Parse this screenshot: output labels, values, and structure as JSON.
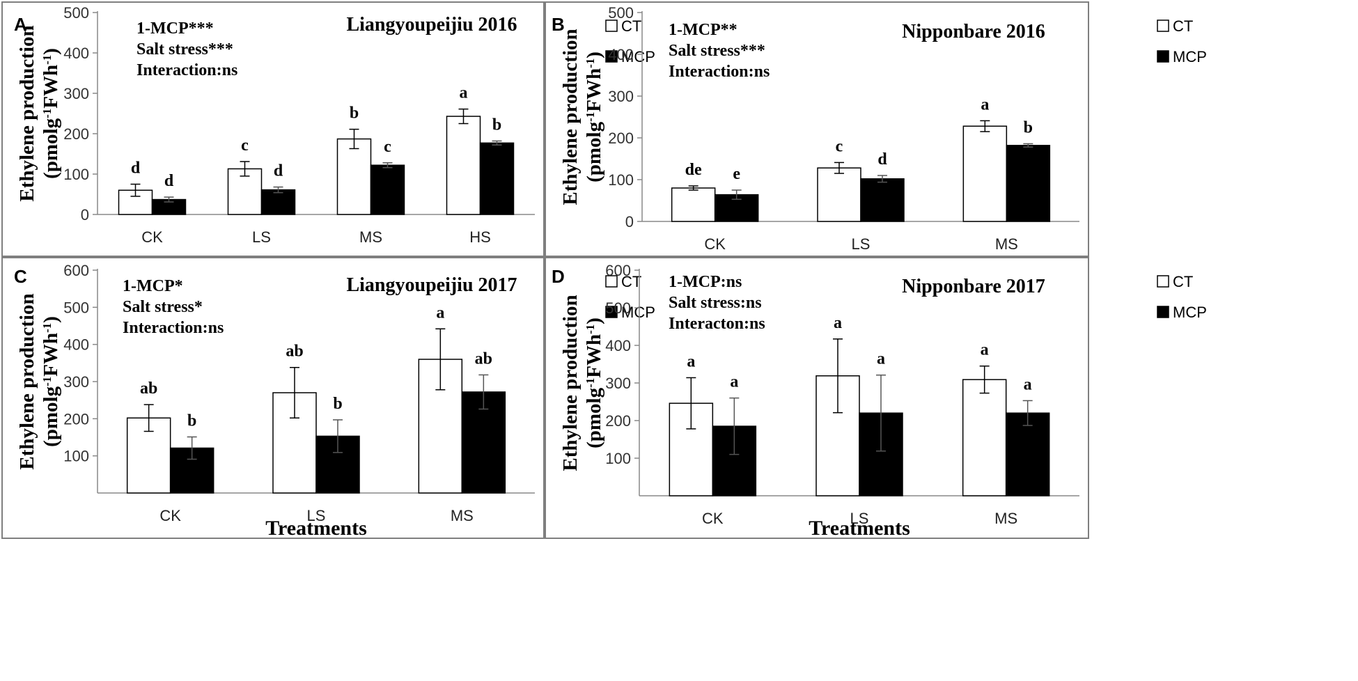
{
  "legend": {
    "ct_label": "CT",
    "mcp_label": "MCP"
  },
  "colors": {
    "ct_fill": "#ffffff",
    "mcp_fill": "#000000",
    "border": "#7f7f7f",
    "axis": "#888888"
  },
  "chart_data": [
    {
      "panel_letter": "A",
      "type": "bar",
      "title": "Liangyoupeijiu 2016",
      "stats": [
        "1-MCP***",
        "Salt stress***",
        "Interaction:ns"
      ],
      "ylabel_line1": "Ethylene production",
      "ylabel_line2_prefix": "(pmolg",
      "ylabel_line2_mid": "FWh",
      "ylabel_sup": "-1",
      "ylabel_close": ")",
      "xlabel": "",
      "ylim": [
        0,
        500
      ],
      "yticks": [
        0,
        100,
        200,
        300,
        400,
        500
      ],
      "categories": [
        "CK",
        "LS",
        "MS",
        "HS"
      ],
      "series": [
        {
          "name": "CT",
          "values": [
            60,
            113,
            187,
            243
          ],
          "errors": [
            15,
            18,
            24,
            18
          ],
          "letters": [
            "d",
            "c",
            "b",
            "a"
          ]
        },
        {
          "name": "MCP",
          "values": [
            37,
            61,
            122,
            177
          ],
          "errors": [
            6,
            7,
            6,
            5
          ],
          "letters": [
            "d",
            "d",
            "c",
            "b"
          ]
        }
      ]
    },
    {
      "panel_letter": "B",
      "type": "bar",
      "title": "Nipponbare 2016",
      "stats": [
        "1-MCP**",
        "Salt stress***",
        "Interaction:ns"
      ],
      "ylabel_line1": "Ethylene production",
      "ylabel_line2_prefix": "(pmolg",
      "ylabel_line2_mid": "FWh",
      "ylabel_sup": "-1",
      "ylabel_close": ")",
      "xlabel": "",
      "ylim": [
        0,
        500
      ],
      "yticks": [
        0,
        100,
        200,
        300,
        400,
        500
      ],
      "categories": [
        "CK",
        "LS",
        "MS"
      ],
      "series": [
        {
          "name": "CT",
          "values": [
            80,
            128,
            228
          ],
          "errors": [
            5,
            13,
            13
          ],
          "letters": [
            "de",
            "c",
            "a"
          ]
        },
        {
          "name": "MCP",
          "values": [
            64,
            102,
            182
          ],
          "errors": [
            11,
            8,
            4
          ],
          "letters": [
            "e",
            "d",
            "b"
          ]
        }
      ]
    },
    {
      "panel_letter": "C",
      "type": "bar",
      "title": "Liangyoupeijiu 2017",
      "stats": [
        "1-MCP*",
        "Salt stress*",
        "Interaction:ns"
      ],
      "ylabel_line1": "Ethylene production",
      "ylabel_line2_prefix": "(pmolg",
      "ylabel_line2_mid": "FWh",
      "ylabel_sup": "-1",
      "ylabel_close": ")",
      "xlabel": "Treatments",
      "ylim": [
        0,
        600
      ],
      "yticks": [
        100,
        200,
        300,
        400,
        500,
        600
      ],
      "categories": [
        "CK",
        "LS",
        "MS"
      ],
      "series": [
        {
          "name": "CT",
          "values": [
            202,
            270,
            360
          ],
          "errors": [
            36,
            68,
            82
          ],
          "letters": [
            "ab",
            "ab",
            "a"
          ]
        },
        {
          "name": "MCP",
          "values": [
            121,
            153,
            272
          ],
          "errors": [
            30,
            44,
            46
          ],
          "letters": [
            "b",
            "b",
            "ab"
          ]
        }
      ]
    },
    {
      "panel_letter": "D",
      "type": "bar",
      "title": "Nipponbare 2017",
      "stats": [
        "1-MCP:ns",
        "Salt stress:ns",
        "Interacton:ns"
      ],
      "ylabel_line1": "Ethylene production",
      "ylabel_line2_prefix": "(pmolg",
      "ylabel_line2_mid": "FWh",
      "ylabel_sup": "-1",
      "ylabel_close": ")",
      "xlabel": "Treatments",
      "ylim": [
        0,
        600
      ],
      "yticks": [
        100,
        200,
        300,
        400,
        500,
        600
      ],
      "categories": [
        "CK",
        "LS",
        "MS"
      ],
      "series": [
        {
          "name": "CT",
          "values": [
            246,
            319,
            309
          ],
          "errors": [
            68,
            98,
            36
          ],
          "letters": [
            "a",
            "a",
            "a"
          ]
        },
        {
          "name": "MCP",
          "values": [
            185,
            220,
            220
          ],
          "errors": [
            75,
            101,
            33
          ],
          "letters": [
            "a",
            "a",
            "a"
          ]
        }
      ]
    }
  ]
}
